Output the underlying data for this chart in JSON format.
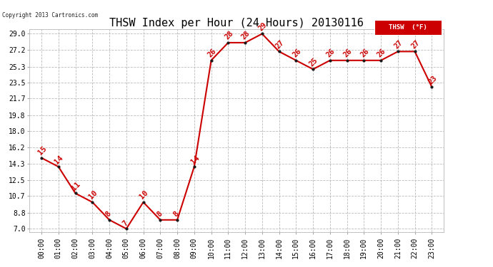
{
  "title": "THSW Index per Hour (24 Hours) 20130116",
  "copyright": "Copyright 2013 Cartronics.com",
  "legend_label": "THSW  (°F)",
  "x_labels": [
    "00:00",
    "01:00",
    "02:00",
    "03:00",
    "04:00",
    "05:00",
    "06:00",
    "07:00",
    "08:00",
    "09:00",
    "10:00",
    "11:00",
    "12:00",
    "13:00",
    "14:00",
    "15:00",
    "16:00",
    "17:00",
    "18:00",
    "19:00",
    "20:00",
    "21:00",
    "22:00",
    "23:00"
  ],
  "y_values": [
    15,
    14,
    11,
    10,
    8,
    7,
    10,
    8,
    8,
    14,
    26,
    28,
    28,
    29,
    27,
    26,
    25,
    26,
    26,
    26,
    26,
    27,
    27,
    23
  ],
  "y_ticks": [
    7.0,
    8.8,
    10.7,
    12.5,
    14.3,
    16.2,
    18.0,
    19.8,
    21.7,
    23.5,
    25.3,
    27.2,
    29.0
  ],
  "y_min": 7.0,
  "y_max": 29.0,
  "line_color": "#cc0000",
  "marker_color": "#1a1a1a",
  "grid_color": "#bbbbbb",
  "bg_color": "#ffffff",
  "title_fontsize": 11,
  "label_fontsize": 7,
  "annotation_fontsize": 7.5,
  "legend_bg": "#cc0000",
  "legend_text_color": "#ffffff"
}
